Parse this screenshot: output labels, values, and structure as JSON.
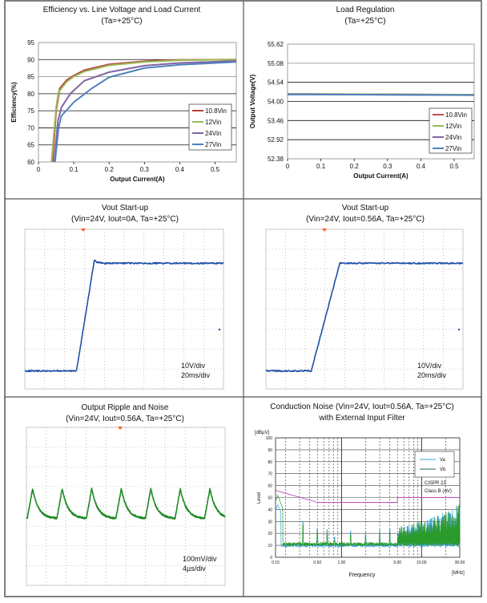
{
  "colors": {
    "frame": "#555555",
    "grid": "#000000",
    "scope_grid": "#9a9a9a",
    "scope_trace_blue": "#1f4fa8",
    "scope_trace_green": "#1e8a23",
    "trigger_marker": "#ff5a1f",
    "limit_line": "#c24ac2"
  },
  "chart_data": [
    {
      "id": "efficiency",
      "type": "line",
      "title": "Efficiency vs. Line Voltage and Load Current",
      "subtitle": "(Ta=+25°C)",
      "xlabel": "Output Current(A)",
      "ylabel": "Efficiency(%)",
      "xlim": [
        0,
        0.56
      ],
      "ylim": [
        60,
        95
      ],
      "xticks": [
        "0",
        "0.1",
        "0.2",
        "0.3",
        "0.4",
        "0.5"
      ],
      "yticks": [
        "60",
        "65",
        "70",
        "75",
        "80",
        "85",
        "90",
        "95"
      ],
      "grid": "horizontal",
      "legend": "right",
      "series": [
        {
          "name": "10.8Vin",
          "color": "#b8423c",
          "x": [
            0.04,
            0.05,
            0.06,
            0.08,
            0.1,
            0.13,
            0.2,
            0.3,
            0.35,
            0.4,
            0.56
          ],
          "y": [
            60,
            75,
            81.5,
            84,
            85.3,
            86.9,
            88.6,
            89.5,
            89.8,
            89.9,
            90
          ]
        },
        {
          "name": "12Vin",
          "color": "#9bbb59",
          "x": [
            0.037,
            0.05,
            0.057,
            0.08,
            0.1,
            0.13,
            0.2,
            0.3,
            0.4,
            0.56
          ],
          "y": [
            60,
            76,
            80.5,
            83.5,
            85,
            86.5,
            88.3,
            89.3,
            89.8,
            90
          ]
        },
        {
          "name": "24Vin",
          "color": "#8064a2",
          "x": [
            0.045,
            0.055,
            0.065,
            0.09,
            0.13,
            0.2,
            0.3,
            0.4,
            0.56
          ],
          "y": [
            60,
            72,
            76,
            80,
            83.8,
            86.3,
            88.2,
            89,
            89.6
          ]
        },
        {
          "name": "27Vin",
          "color": "#4f81bd",
          "x": [
            0.047,
            0.057,
            0.065,
            0.1,
            0.15,
            0.2,
            0.3,
            0.4,
            0.56
          ],
          "y": [
            60,
            70,
            73.5,
            77.5,
            81.5,
            84.8,
            87.5,
            88.5,
            89.3
          ]
        }
      ]
    },
    {
      "id": "load-regulation",
      "type": "line",
      "title": "Load Regulation",
      "subtitle": "(Ta=+25°C)",
      "xlabel": "Output Current(A)",
      "ylabel": "Output Voltage(V)",
      "xlim": [
        0,
        0.56
      ],
      "ylim": [
        52.38,
        55.62
      ],
      "xticks": [
        "0",
        "0.1",
        "0.2",
        "0.3",
        "0.4",
        "0.5"
      ],
      "yticks": [
        "52.38",
        "52.92",
        "53.46",
        "54.00",
        "54.54",
        "55.08",
        "55.62"
      ],
      "grid": "horizontal",
      "legend": "right",
      "series": [
        {
          "name": "10.8Vin",
          "color": "#c0504d",
          "x": [
            0,
            0.56
          ],
          "y": [
            54.21,
            54.19
          ]
        },
        {
          "name": "12Vin",
          "color": "#9bbb59",
          "x": [
            0,
            0.56
          ],
          "y": [
            54.21,
            54.19
          ]
        },
        {
          "name": "24Vin",
          "color": "#8064a2",
          "x": [
            0,
            0.56
          ],
          "y": [
            54.2,
            54.18
          ]
        },
        {
          "name": "27Vin",
          "color": "#4f81bd",
          "x": [
            0,
            0.56
          ],
          "y": [
            54.2,
            54.18
          ]
        }
      ]
    },
    {
      "id": "startup-0a",
      "type": "line",
      "title": "Vout Start-up",
      "subtitle": "(Vin=24V, Iout=0A, Ta=+25°C)",
      "scale_v": "10V/div",
      "scale_t": "20ms/div",
      "xlim": [
        0,
        200
      ],
      "ylim_div": 8,
      "ground_div": 0.9,
      "trace": {
        "t_ms": [
          0,
          52,
          70,
          73,
          80,
          200
        ],
        "v": [
          0,
          0,
          55.5,
          54.5,
          54,
          54
        ]
      }
    },
    {
      "id": "startup-056a",
      "type": "line",
      "title": "Vout Start-up",
      "subtitle": "(Vin=24V, Iout=0.56A, Ta=+25°C)",
      "scale_v": "10V/div",
      "scale_t": "20ms/div",
      "xlim": [
        0,
        200
      ],
      "ylim_div": 8,
      "ground_div": 0.9,
      "trace": {
        "t_ms": [
          0,
          46,
          75,
          200
        ],
        "v": [
          0,
          0,
          54,
          54
        ]
      }
    },
    {
      "id": "ripple",
      "type": "line",
      "title": "Output Ripple and Noise",
      "subtitle": "(Vin=24V, Iout=0.56A, Ta=+25°C)",
      "scale_v": "100mV/div",
      "scale_t": "4µs/div",
      "xlim": [
        0,
        40
      ],
      "trace": {
        "period_us": 5.95,
        "first_peak_us": 1.25,
        "ripple_pk_pk_mV": 150
      }
    },
    {
      "id": "conduction-noise",
      "type": "line",
      "title": "Conduction Noise (Vin=24V, Iout=0.56A, Ta=+25°C)",
      "subtitle": "with External Input Filter",
      "xlabel": "Frequency",
      "xunit": "[MHz]",
      "ylabel": "Level",
      "yunit": "[dBµV]",
      "xscale": "log",
      "xlim": [
        0.15,
        30
      ],
      "ylim": [
        0,
        100
      ],
      "xticks": [
        "0.15",
        "0.50",
        "1.00",
        "5.00",
        "10.00",
        "30.00"
      ],
      "xtick_values": [
        0.15,
        0.5,
        1,
        5,
        10,
        30
      ],
      "yticks": [
        "0",
        "10",
        "20",
        "30",
        "40",
        "50",
        "60",
        "70",
        "80",
        "90",
        "100"
      ],
      "grid": "both",
      "legend": "top-right",
      "limit": {
        "name_1": "CISPR 22",
        "name_2": "Class B (AV)",
        "f": [
          0.15,
          0.5,
          5,
          5,
          30
        ],
        "level": [
          56,
          46,
          46,
          50,
          50
        ]
      },
      "series": [
        {
          "name": "Va",
          "color": "#3ea3dc",
          "fundamental_MHz": 0.165,
          "harmonic_peaks": {
            "f": [
              0.33,
              0.5,
              0.66,
              0.82,
              1.3,
              2.0,
              3.0,
              4.0
            ],
            "level": [
              30,
              24,
              23,
              17,
              22,
              21,
              23,
              24
            ]
          },
          "floor_dB": 10
        },
        {
          "name": "Vb",
          "color": "#1f6b3c",
          "peak": {
            "f": 0.16,
            "level": 52
          },
          "floor_dB": 11,
          "envelope": {
            "f": [
              5,
              10,
              20,
              30
            ],
            "level": [
              25,
              30,
              38,
              45
            ]
          }
        }
      ]
    }
  ]
}
